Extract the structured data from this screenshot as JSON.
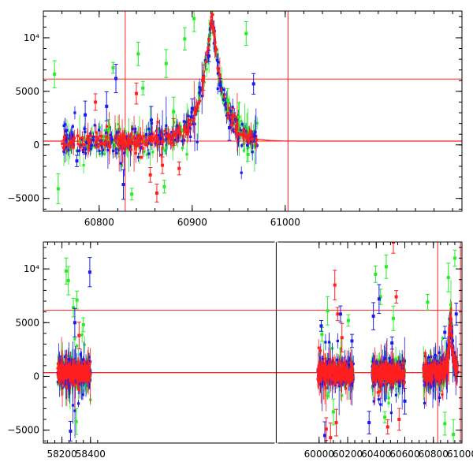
{
  "chart_data": [
    {
      "type": "scatter",
      "panel": "top",
      "title": "",
      "xlabel": "",
      "ylabel": "",
      "xlim": [
        60740,
        61190
      ],
      "ylim": [
        -6200,
        12500
      ],
      "xticks": [
        60800,
        60900,
        61000
      ],
      "xtick_labels": [
        "60800",
        "60900",
        "61000"
      ],
      "yticks": [
        -5000,
        0,
        5000,
        10000
      ],
      "ytick_labels": [
        "−5000",
        "0",
        "5000",
        "10⁴"
      ],
      "reference_lines": {
        "horizontal": [
          6150,
          350
        ],
        "vertical": [
          60828,
          61003
        ]
      },
      "model_curve": {
        "peak_x": 60921,
        "peak_y": 12500,
        "baseline": 350,
        "sigma": 12
      },
      "series": [
        {
          "name": "green",
          "color": "#22ee22",
          "points": [
            [
              60752,
              6600
            ],
            [
              60815,
              7200
            ],
            [
              60842,
              8500
            ],
            [
              60847,
              5300
            ],
            [
              60872,
              7600
            ],
            [
              60892,
              9900
            ],
            [
              60902,
              11800
            ],
            [
              60958,
              10400
            ],
            [
              60756,
              -4100
            ],
            [
              60835,
              -4600
            ],
            [
              60870,
              -3900
            ],
            [
              60960,
              -900
            ],
            [
              60880,
              3100
            ],
            [
              60950,
              2600
            ],
            [
              60938,
              4200
            ],
            [
              60810,
              1400
            ]
          ]
        },
        {
          "name": "blue",
          "color": "#1a1aee",
          "points": [
            [
              60785,
              2800
            ],
            [
              60808,
              3600
            ],
            [
              60818,
              6200
            ],
            [
              60826,
              -3700
            ],
            [
              60856,
              2300
            ],
            [
              60866,
              600
            ],
            [
              60918,
              8300
            ],
            [
              60930,
              5600
            ],
            [
              60966,
              5700
            ],
            [
              60776,
              -1500
            ],
            [
              60900,
              3400
            ],
            [
              60940,
              1600
            ]
          ]
        },
        {
          "name": "red",
          "color": "#ff1f1f",
          "points": [
            [
              60796,
              4000
            ],
            [
              60840,
              4800
            ],
            [
              60855,
              -2800
            ],
            [
              60862,
              -4500
            ],
            [
              60868,
              -1900
            ],
            [
              60886,
              -2200
            ],
            [
              60912,
              6300
            ],
            [
              60922,
              11000
            ],
            [
              60944,
              2800
            ],
            [
              60880,
              1200
            ]
          ]
        }
      ]
    },
    {
      "type": "scatter",
      "panel": "bottom",
      "title": "",
      "xlabel": "",
      "ylabel": "",
      "xlim": [
        58070,
        61000
      ],
      "ylim": [
        -6200,
        12500
      ],
      "broken_x_axis": true,
      "xticks": [
        58200,
        58400,
        60000,
        60200,
        60400,
        60600,
        60800,
        61000
      ],
      "xtick_labels": [
        "58200",
        "58400",
        "60000",
        "60200",
        "60400",
        "60600",
        "60800",
        "61000"
      ],
      "yticks": [
        -5000,
        0,
        5000,
        10000
      ],
      "ytick_labels": [
        "−5000",
        "0",
        "5000",
        "10⁴"
      ],
      "data_segments": [
        [
          58170,
          58400
        ],
        [
          59990,
          60240
        ],
        [
          60370,
          60600
        ],
        [
          60730,
          60970
        ]
      ],
      "reference_lines": {
        "horizontal": [
          6150,
          350
        ],
        "vertical": [
          60830,
          60990
        ]
      },
      "model_curve": {
        "peak_x": 60921,
        "peak_y": 6100,
        "baseline": 350,
        "sigma": 14
      },
      "series": [
        {
          "name": "green",
          "color": "#22ee22",
          "points": [
            [
              58230,
              9800
            ],
            [
              58245,
              8900
            ],
            [
              58280,
              6400
            ],
            [
              58305,
              7100
            ],
            [
              58350,
              4800
            ],
            [
              60020,
              3900
            ],
            [
              60060,
              6100
            ],
            [
              60205,
              5200
            ],
            [
              60395,
              9500
            ],
            [
              60430,
              7400
            ],
            [
              60470,
              10200
            ],
            [
              60520,
              5400
            ],
            [
              60760,
              6900
            ],
            [
              60905,
              9200
            ],
            [
              60950,
              11000
            ],
            [
              58300,
              -4200
            ],
            [
              60100,
              -3300
            ],
            [
              60460,
              -3800
            ],
            [
              60880,
              -4400
            ],
            [
              60940,
              -5400
            ]
          ]
        },
        {
          "name": "blue",
          "color": "#1a1aee",
          "points": [
            [
              58395,
              9700
            ],
            [
              58290,
              5000
            ],
            [
              60015,
              4700
            ],
            [
              60150,
              5800
            ],
            [
              60230,
              3300
            ],
            [
              60380,
              5600
            ],
            [
              60420,
              7200
            ],
            [
              60510,
              3100
            ],
            [
              60880,
              4100
            ],
            [
              60960,
              5800
            ],
            [
              58260,
              -5100
            ],
            [
              60040,
              -5500
            ],
            [
              60350,
              -4300
            ],
            [
              60600,
              -2300
            ]
          ]
        },
        {
          "name": "red",
          "color": "#ff1f1f",
          "points": [
            [
              60110,
              8500
            ],
            [
              60130,
              5800
            ],
            [
              60160,
              3600
            ],
            [
              60520,
              12500
            ],
            [
              60540,
              7400
            ],
            [
              58320,
              3800
            ],
            [
              60050,
              -4900
            ],
            [
              60080,
              -5700
            ],
            [
              60120,
              -4300
            ],
            [
              60480,
              -4700
            ],
            [
              60560,
              -4000
            ]
          ]
        }
      ]
    }
  ]
}
